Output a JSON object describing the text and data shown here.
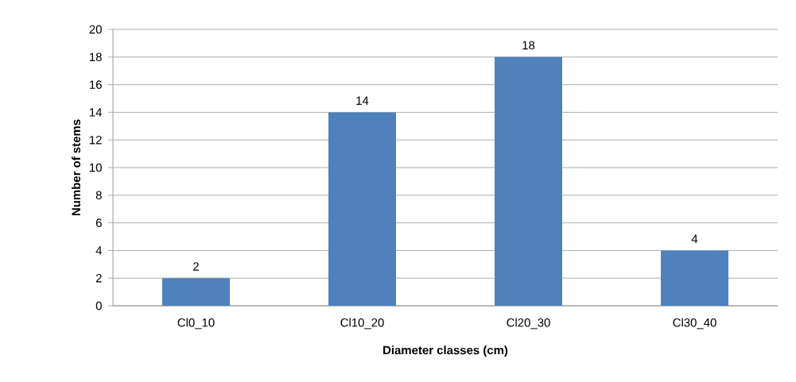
{
  "chart_data": {
    "type": "bar",
    "xlabel": "Diameter classes (cm)",
    "ylabel": "Number of stems",
    "categories": [
      "Cl0_10",
      "Cl10_20",
      "Cl20_30",
      "Cl30_40"
    ],
    "values": [
      2,
      14,
      18,
      4
    ],
    "color": "#4f81bd",
    "ylim": [
      0,
      20
    ],
    "yticks": [
      0,
      2,
      4,
      6,
      8,
      10,
      12,
      14,
      16,
      18,
      20
    ],
    "grid": "y",
    "data_labels": true
  }
}
